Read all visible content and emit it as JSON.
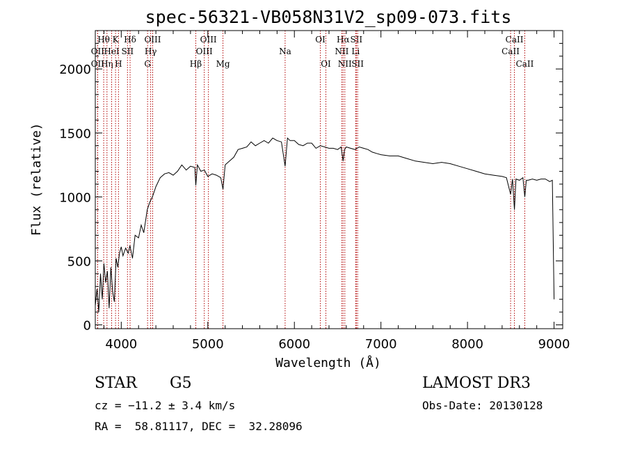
{
  "chart_data": {
    "type": "line",
    "title": "spec-56321-VB058N31V2_sp09-073.fits",
    "xlabel": "Wavelength (Å)",
    "ylabel": "Flux (relative)",
    "xlim": [
      3700,
      9100
    ],
    "ylim": [
      -30,
      2300
    ],
    "xticks": [
      4000,
      5000,
      6000,
      7000,
      8000,
      9000
    ],
    "yticks": [
      0,
      500,
      1000,
      1500,
      2000
    ],
    "series": [
      {
        "color": "#000000",
        "x": [
          3700,
          3720,
          3740,
          3760,
          3780,
          3800,
          3820,
          3840,
          3860,
          3880,
          3900,
          3920,
          3940,
          3960,
          3980,
          4000,
          4020,
          4050,
          4080,
          4100,
          4130,
          4160,
          4200,
          4230,
          4260,
          4300,
          4330,
          4360,
          4400,
          4450,
          4500,
          4550,
          4600,
          4650,
          4700,
          4750,
          4800,
          4850,
          4861,
          4880,
          4920,
          4960,
          5000,
          5050,
          5100,
          5150,
          5175,
          5200,
          5250,
          5300,
          5350,
          5400,
          5450,
          5500,
          5550,
          5600,
          5650,
          5700,
          5750,
          5800,
          5850,
          5893,
          5920,
          5950,
          6000,
          6050,
          6100,
          6150,
          6200,
          6250,
          6300,
          6350,
          6400,
          6450,
          6500,
          6540,
          6563,
          6580,
          6600,
          6650,
          6700,
          6750,
          6800,
          6850,
          6900,
          6950,
          7000,
          7100,
          7200,
          7300,
          7400,
          7500,
          7600,
          7700,
          7800,
          7900,
          8000,
          8100,
          8200,
          8300,
          8400,
          8450,
          8498,
          8520,
          8542,
          8560,
          8600,
          8640,
          8662,
          8680,
          8700,
          8750,
          8800,
          8850,
          8900,
          8950,
          8980,
          9000
        ],
        "y": [
          150,
          280,
          100,
          400,
          200,
          480,
          330,
          420,
          130,
          450,
          260,
          180,
          520,
          450,
          560,
          610,
          540,
          600,
          560,
          620,
          520,
          700,
          680,
          780,
          720,
          900,
          960,
          1000,
          1080,
          1150,
          1180,
          1190,
          1170,
          1200,
          1250,
          1210,
          1240,
          1230,
          1090,
          1250,
          1200,
          1210,
          1160,
          1180,
          1170,
          1150,
          1060,
          1250,
          1280,
          1310,
          1370,
          1380,
          1390,
          1430,
          1400,
          1420,
          1440,
          1420,
          1460,
          1440,
          1430,
          1240,
          1460,
          1440,
          1440,
          1410,
          1400,
          1420,
          1420,
          1380,
          1400,
          1390,
          1380,
          1380,
          1370,
          1390,
          1280,
          1370,
          1390,
          1380,
          1370,
          1390,
          1380,
          1370,
          1350,
          1340,
          1330,
          1320,
          1320,
          1300,
          1280,
          1270,
          1260,
          1270,
          1260,
          1240,
          1220,
          1200,
          1180,
          1170,
          1160,
          1150,
          1020,
          1140,
          900,
          1140,
          1130,
          1150,
          1000,
          1130,
          1130,
          1140,
          1130,
          1140,
          1140,
          1120,
          1130,
          200
        ]
      }
    ],
    "lines": [
      {
        "x": 3797,
        "label": "Hθ",
        "row": 1
      },
      {
        "x": 3727,
        "label": "OII",
        "row": 2
      },
      {
        "x": 3727,
        "label": "OII",
        "row": 3
      },
      {
        "x": 3835,
        "label": "Hη",
        "row": 3
      },
      {
        "x": 3889,
        "label": "HeI",
        "row": 2
      },
      {
        "x": 3934,
        "label": "K",
        "row": 1
      },
      {
        "x": 3968,
        "label": "H",
        "row": 3
      },
      {
        "x": 4072,
        "label": "SII",
        "row": 2
      },
      {
        "x": 4102,
        "label": "Hδ",
        "row": 1
      },
      {
        "x": 4363,
        "label": "OIII",
        "row": 1
      },
      {
        "x": 4340,
        "label": "Hγ",
        "row": 2
      },
      {
        "x": 4304,
        "label": "G",
        "row": 3
      },
      {
        "x": 4861,
        "label": "Hβ",
        "row": 3
      },
      {
        "x": 5007,
        "label": "OIII",
        "row": 1
      },
      {
        "x": 4959,
        "label": "OIII",
        "row": 2
      },
      {
        "x": 5175,
        "label": "Mg",
        "row": 3
      },
      {
        "x": 5893,
        "label": "Na",
        "row": 2
      },
      {
        "x": 6300,
        "label": "OI",
        "row": 1
      },
      {
        "x": 6364,
        "label": "OI",
        "row": 3
      },
      {
        "x": 6563,
        "label": "Hα",
        "row": 1
      },
      {
        "x": 6548,
        "label": "NII",
        "row": 2
      },
      {
        "x": 6583,
        "label": "NII",
        "row": 3
      },
      {
        "x": 6716,
        "label": "SII",
        "row": 1
      },
      {
        "x": 6708,
        "label": "Li",
        "row": 2
      },
      {
        "x": 6731,
        "label": "SII",
        "row": 3
      },
      {
        "x": 8542,
        "label": "CaII",
        "row": 1
      },
      {
        "x": 8498,
        "label": "CaII",
        "row": 2
      },
      {
        "x": 8662,
        "label": "CaII",
        "row": 3
      }
    ]
  },
  "info": {
    "class_label": "STAR",
    "subclass": "G5",
    "survey": "LAMOST DR3",
    "cz": "cz = −11.2 ± 3.4 km/s",
    "obs_date": "Obs-Date: 20130128",
    "coords": "RA =  58.81117, DEC =  32.28096"
  }
}
